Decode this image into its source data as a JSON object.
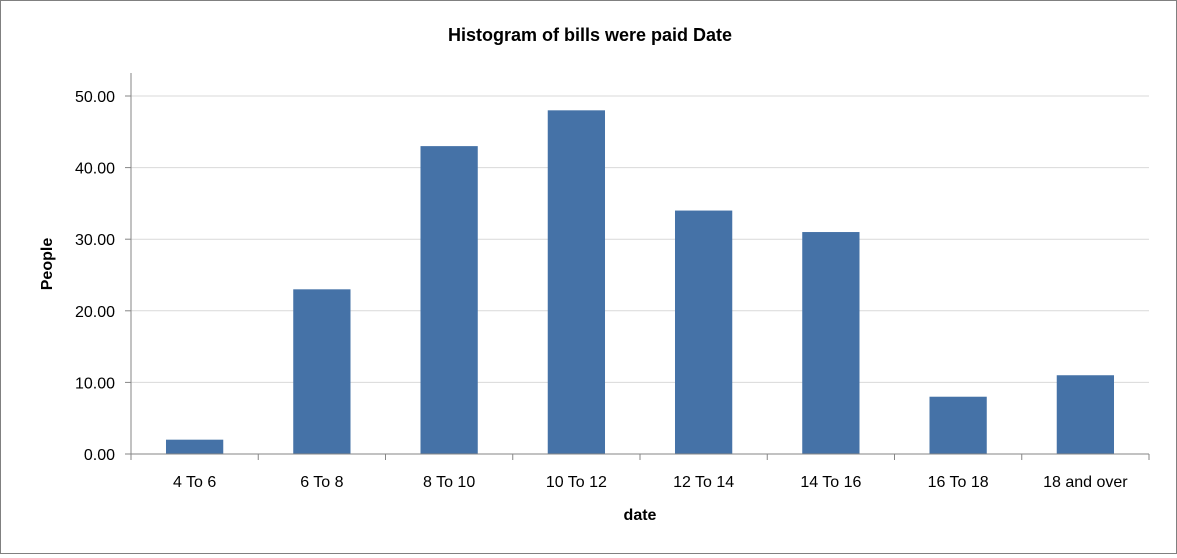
{
  "chart_data": {
    "type": "bar",
    "title": "Histogram of bills were paid Date",
    "xlabel": "date",
    "ylabel": "People",
    "categories": [
      "4 To 6",
      "6 To 8",
      "8 To 10",
      "10 To 12",
      "12 To 14",
      "14 To 16",
      "16 To 18",
      "18 and over"
    ],
    "values": [
      2,
      23,
      43,
      48,
      34,
      31,
      8,
      11
    ],
    "ylim": [
      0,
      50
    ],
    "yticks": [
      "0.00",
      "10.00",
      "20.00",
      "30.00",
      "40.00",
      "50.00"
    ],
    "grid": true,
    "legend": "none",
    "bar_color": "#4572A7",
    "grid_color": "#D9D9D9",
    "axis_color": "#868686"
  }
}
